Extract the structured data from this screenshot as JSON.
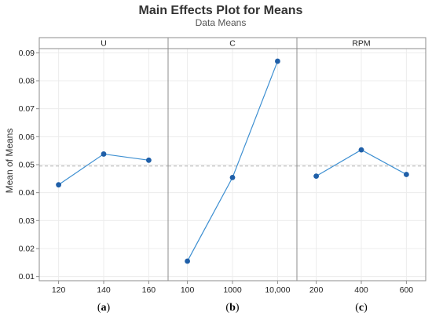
{
  "chart_data": {
    "type": "line",
    "title": "Main Effects Plot for Means",
    "subtitle": "Data Means",
    "ylabel": "Mean of Means",
    "ylim": [
      0.0085,
      0.0915
    ],
    "yticks": [
      "0.01",
      "0.02",
      "0.03",
      "0.04",
      "0.05",
      "0.06",
      "0.07",
      "0.08",
      "0.09"
    ],
    "reference_line": 0.0495,
    "grid": true,
    "colors": {
      "line": "#3d8fd1",
      "marker": "#1f5fa8",
      "reference": "#b0b0b0",
      "strip": "#ffffff",
      "border": "#8c8c8c",
      "grid": "#ececec"
    },
    "panels": [
      {
        "factor": "U",
        "categories": [
          "120",
          "140",
          "160"
        ],
        "values": [
          0.0428,
          0.0538,
          0.0516
        ],
        "caption": "a"
      },
      {
        "factor": "C",
        "categories": [
          "100",
          "1000",
          "10,000"
        ],
        "values": [
          0.0155,
          0.0454,
          0.087
        ],
        "caption": "b"
      },
      {
        "factor": "RPM",
        "categories": [
          "200",
          "400",
          "600"
        ],
        "values": [
          0.0459,
          0.0553,
          0.0465
        ],
        "caption": "c"
      }
    ]
  }
}
